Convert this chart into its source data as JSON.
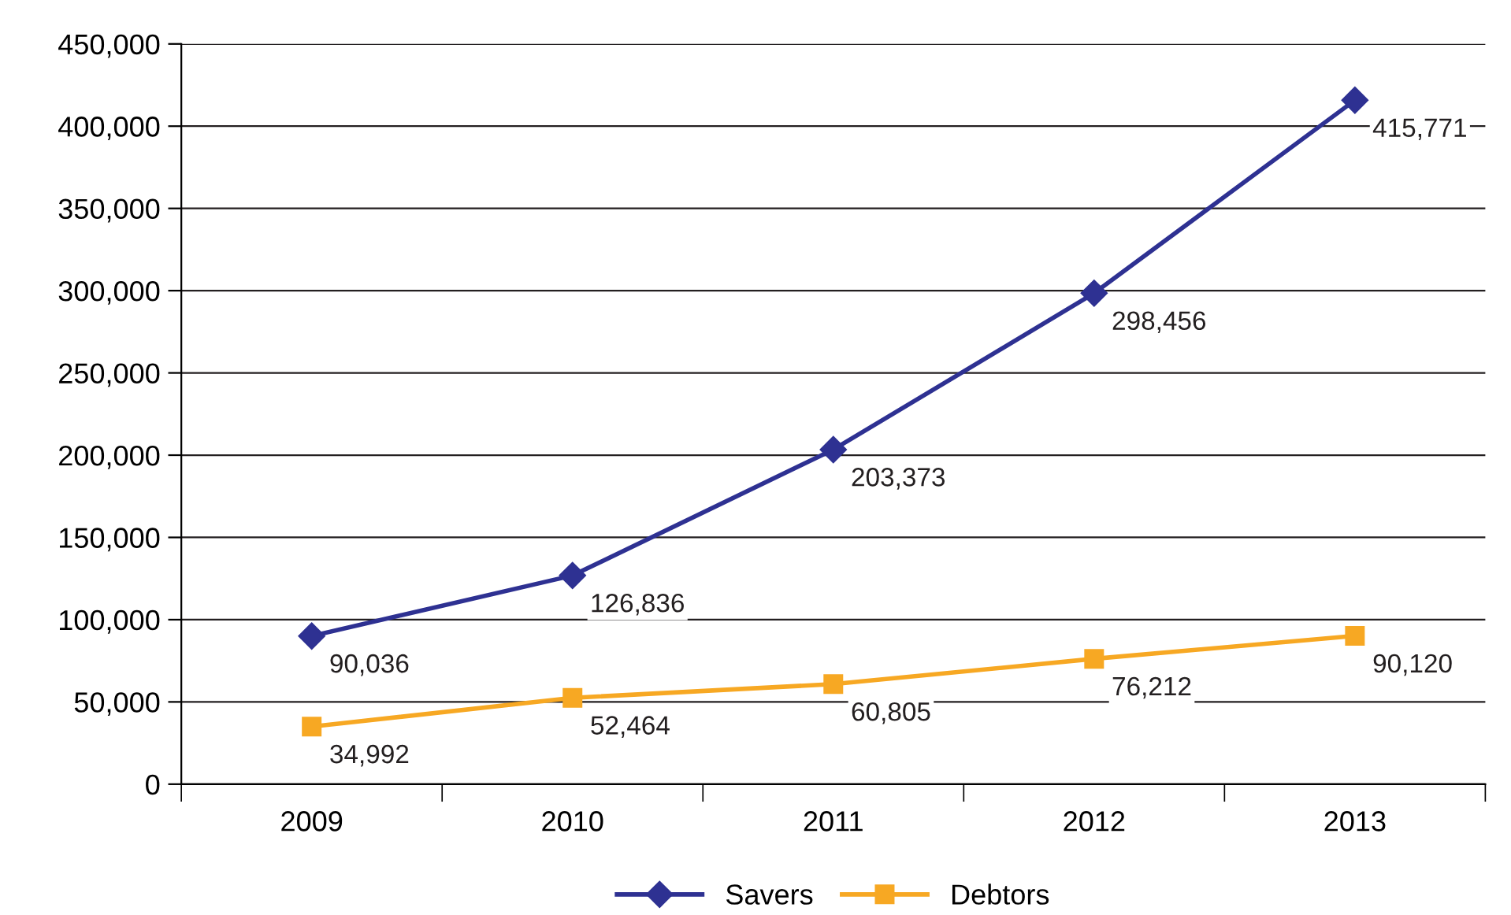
{
  "chart_data": {
    "type": "line",
    "categories": [
      "2009",
      "2010",
      "2011",
      "2012",
      "2013"
    ],
    "series": [
      {
        "name": "Savers",
        "color": "#2e3192",
        "marker": "diamond",
        "values": [
          90036,
          126836,
          203373,
          298456,
          415771
        ],
        "value_labels": [
          "90,036",
          "126,836",
          "203,373",
          "298,456",
          "415,771"
        ]
      },
      {
        "name": "Debtors",
        "color": "#f7a823",
        "marker": "square",
        "values": [
          34992,
          52464,
          60805,
          76212,
          90120
        ],
        "value_labels": [
          "34,992",
          "52,464",
          "60,805",
          "76,212",
          "90,120"
        ]
      }
    ],
    "ylim": [
      0,
      450000
    ],
    "yticks": [
      {
        "value": 0,
        "label": "0"
      },
      {
        "value": 50000,
        "label": "50,000"
      },
      {
        "value": 100000,
        "label": "100,000"
      },
      {
        "value": 150000,
        "label": "150,000"
      },
      {
        "value": 200000,
        "label": "200,000"
      },
      {
        "value": 250000,
        "label": "250,000"
      },
      {
        "value": 300000,
        "label": "300,000"
      },
      {
        "value": 350000,
        "label": "350,000"
      },
      {
        "value": 400000,
        "label": "400,000"
      },
      {
        "value": 450000,
        "label": "450,000"
      }
    ],
    "grid": "y",
    "legend": "bottom",
    "line_style": "solid"
  }
}
